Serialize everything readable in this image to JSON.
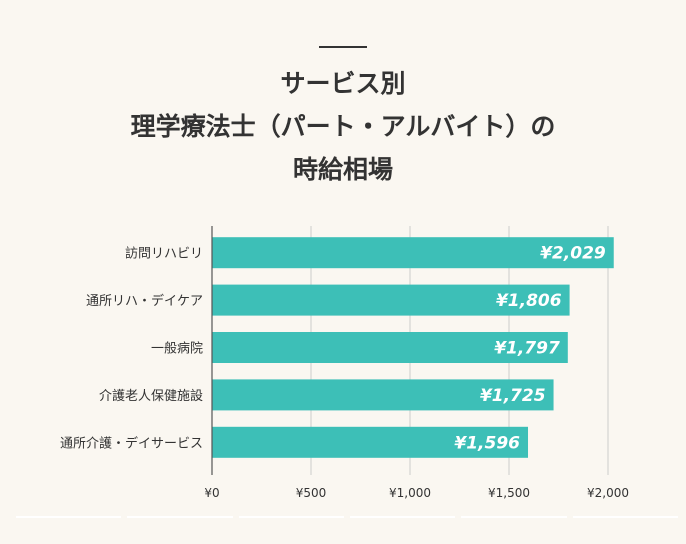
{
  "title": {
    "lines": [
      "サービス別",
      "理学療法士（パート・アルバイト）の",
      "時給相場"
    ]
  },
  "colors": {
    "bar": "#3dbfb7",
    "grid": "#cccccc",
    "axis": "#555555",
    "background": "#faf7f1"
  },
  "chart_data": {
    "type": "bar",
    "orientation": "horizontal",
    "categories": [
      "訪問リハビリ",
      "通所リハ・デイケア",
      "一般病院",
      "介護老人保健施設",
      "通所介護・デイサービス"
    ],
    "values": [
      2029,
      1806,
      1797,
      1725,
      1596
    ],
    "data_labels": [
      "¥2,029",
      "¥1,806",
      "¥1,797",
      "¥1,725",
      "¥1,596"
    ],
    "xlim": [
      0,
      2000
    ],
    "xticks": [
      0,
      500,
      1000,
      1500,
      2000
    ],
    "xtick_labels": [
      "¥0",
      "¥500",
      "¥1,000",
      "¥1,500",
      "¥2,000"
    ],
    "grid": true,
    "legend": "none"
  }
}
